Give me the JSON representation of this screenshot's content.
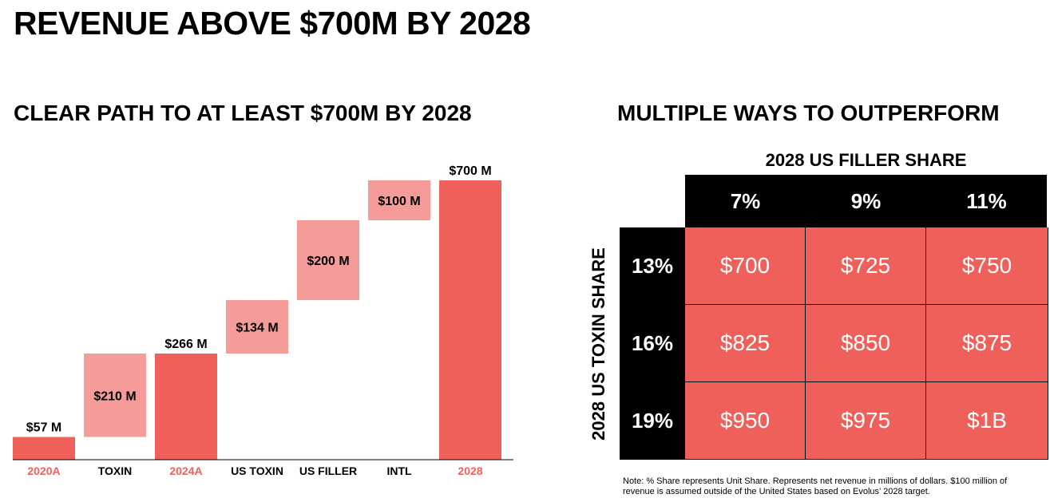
{
  "title": "REVENUE ABOVE $700M BY 2028",
  "left_subtitle": "CLEAR PATH TO AT LEAST $700M BY 2028",
  "right_subtitle": "MULTIPLE WAYS TO OUTPERFORM",
  "colors": {
    "total_bar": "#f0605a",
    "increment_bar": "#f69c98",
    "total_label": "#f0605a",
    "increment_label": "#000000",
    "matrix_cell": "#f0605a",
    "matrix_header": "#000000"
  },
  "chart_data": [
    {
      "type": "bar",
      "subtype": "waterfall",
      "title": "CLEAR PATH TO AT LEAST $700M BY 2028",
      "ylim": [
        0,
        700
      ],
      "grid": false,
      "categories": [
        "2020A",
        "TOXIN",
        "2024A",
        "US TOXIN",
        "US FILLER",
        "INTL",
        "2028"
      ],
      "bars": [
        {
          "category": "2020A",
          "kind": "total",
          "start": 0,
          "end": 57,
          "label": "$57 M"
        },
        {
          "category": "TOXIN",
          "kind": "increment",
          "start": 57,
          "end": 266,
          "label": "$210 M"
        },
        {
          "category": "2024A",
          "kind": "total",
          "start": 0,
          "end": 266,
          "label": "$266 M"
        },
        {
          "category": "US TOXIN",
          "kind": "increment",
          "start": 266,
          "end": 400,
          "label": "$134 M"
        },
        {
          "category": "US FILLER",
          "kind": "increment",
          "start": 400,
          "end": 600,
          "label": "$200 M"
        },
        {
          "category": "INTL",
          "kind": "increment",
          "start": 600,
          "end": 700,
          "label": "$100 M"
        },
        {
          "category": "2028",
          "kind": "total",
          "start": 0,
          "end": 700,
          "label": "$700 M"
        }
      ]
    },
    {
      "type": "table",
      "title": "2028 US FILLER SHARE",
      "column_header_title": "2028 US FILLER SHARE",
      "row_header_title": "2028 US TOXIN SHARE",
      "columns": [
        "7%",
        "9%",
        "11%"
      ],
      "rows": [
        "13%",
        "16%",
        "19%"
      ],
      "cells": [
        [
          "$700",
          "$725",
          "$750"
        ],
        [
          "$825",
          "$850",
          "$875"
        ],
        [
          "$950",
          "$975",
          "$1B"
        ]
      ]
    }
  ],
  "note": "Note: % Share represents Unit Share. Represents net revenue in millions of dollars.  $100 million of revenue is assumed outside of the United States based on Evolus’ 2028 target."
}
